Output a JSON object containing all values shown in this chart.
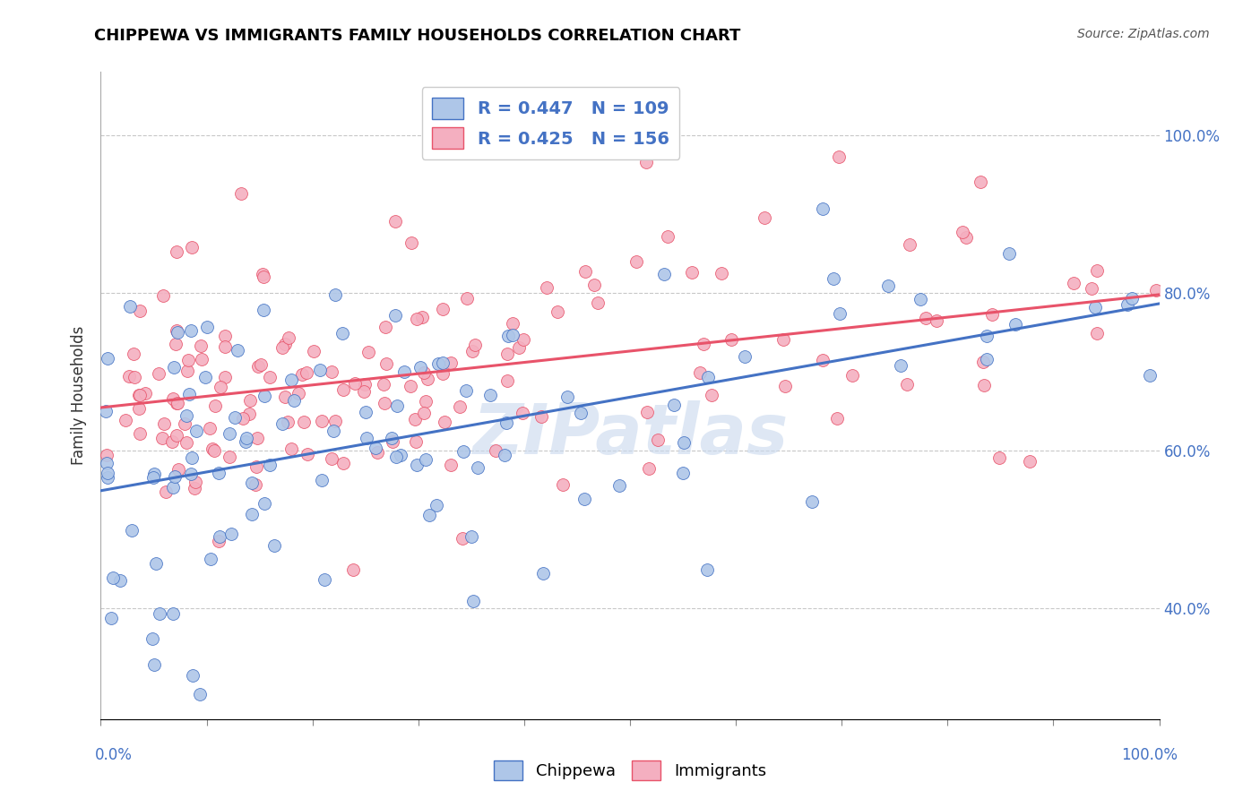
{
  "title": "CHIPPEWA VS IMMIGRANTS FAMILY HOUSEHOLDS CORRELATION CHART",
  "source_text": "Source: ZipAtlas.com",
  "ylabel": "Family Households",
  "yticks_right": [
    0.4,
    0.6,
    0.8,
    1.0
  ],
  "ytick_labels_right": [
    "40.0%",
    "60.0%",
    "80.0%",
    "100.0%"
  ],
  "xlim": [
    0.0,
    1.0
  ],
  "ylim": [
    0.26,
    1.08
  ],
  "chippewa_color": "#aec6e8",
  "immigrants_color": "#f4afc0",
  "chippewa_line_color": "#4472c4",
  "immigrants_line_color": "#e8536a",
  "legend_color": "#4472c4",
  "legend_r_chippewa": "R = 0.447",
  "legend_n_chippewa": "N = 109",
  "legend_r_immigrants": "R = 0.425",
  "legend_n_immigrants": "N = 156",
  "title_fontsize": 13,
  "watermark_text": "ZIPatlas",
  "watermark_color": "#c8d8ee",
  "chip_intercept": 0.555,
  "chip_slope": 0.225,
  "immig_intercept": 0.645,
  "immig_slope": 0.155
}
